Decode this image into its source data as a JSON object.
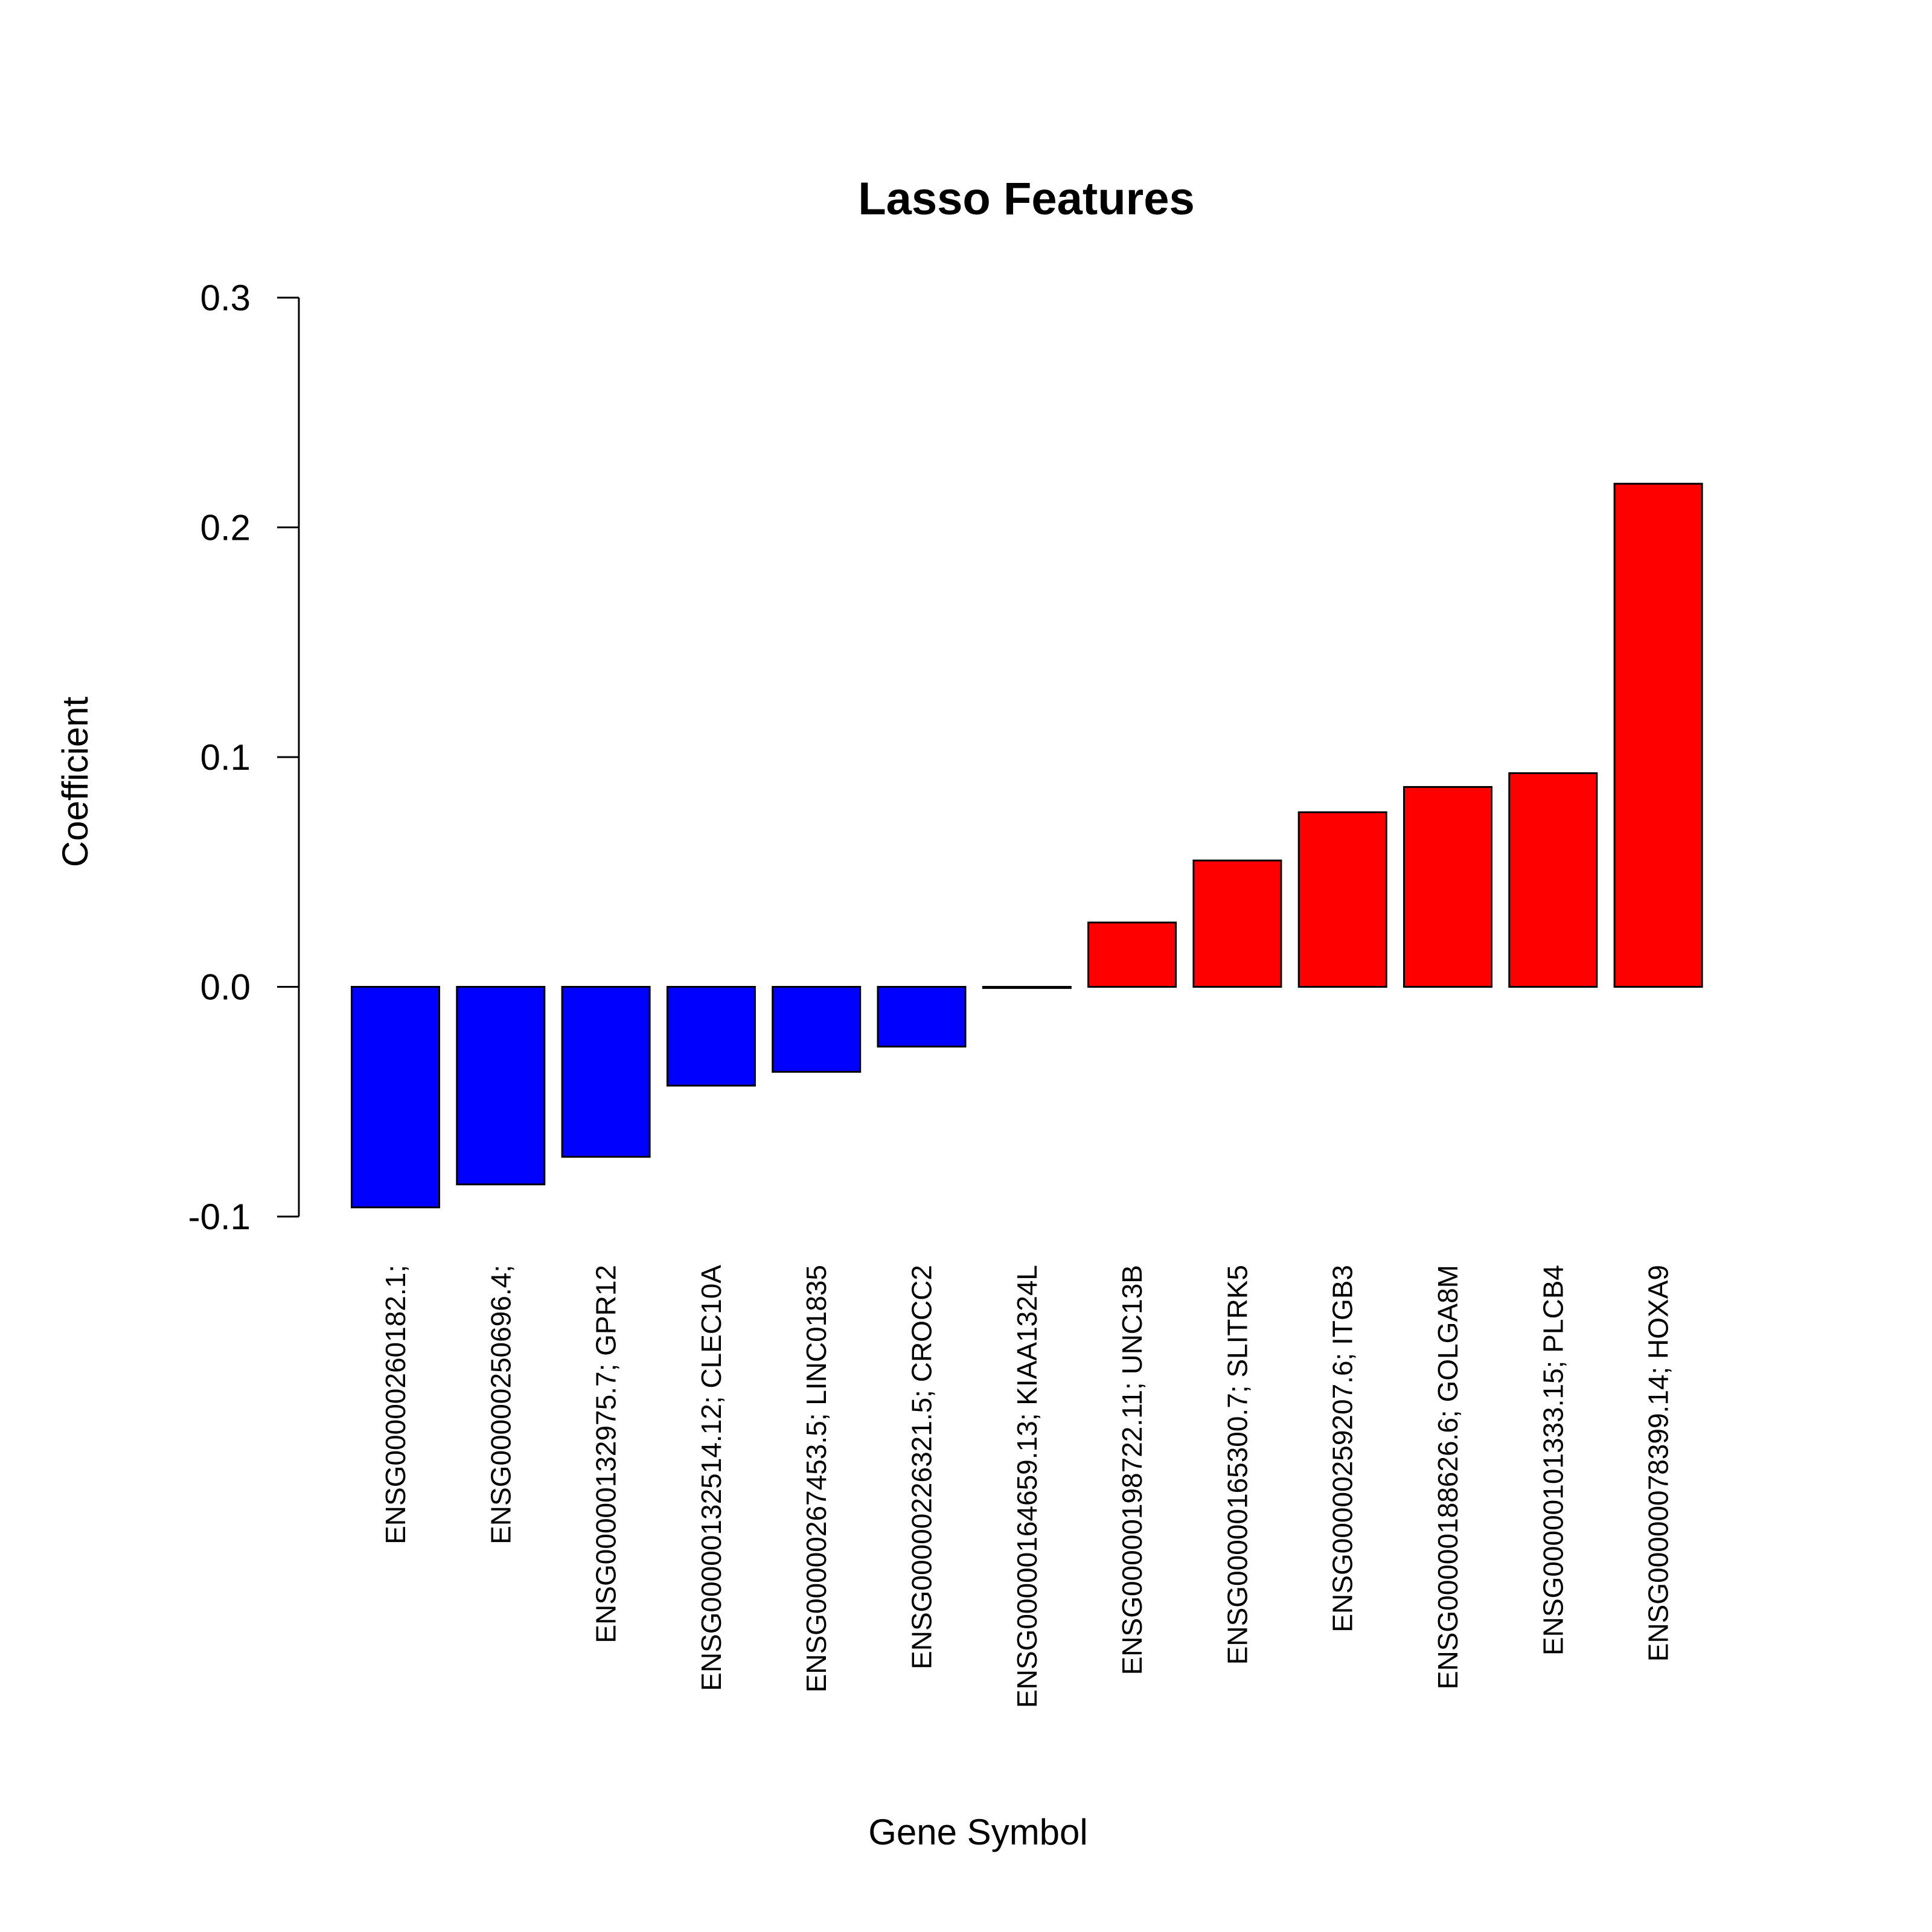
{
  "chart_data": {
    "type": "bar",
    "title": "Lasso Features",
    "xlabel": "Gene Symbol",
    "ylabel": "Coefficient",
    "ylim": [
      -0.1,
      0.3
    ],
    "yticks": [
      "-0.1",
      "0.0",
      "0.1",
      "0.2",
      "0.3"
    ],
    "grid": false,
    "categories": [
      "ENSG00000260182.1;",
      "ENSG00000250696.4;",
      "ENSG00000132975.7; GPR12",
      "ENSG00000132514.12; CLEC10A",
      "ENSG00000267453.5; LINC01835",
      "ENSG00000226321.5; CROCC2",
      "ENSG00000164659.13; KIAA1324L",
      "ENSG00000198722.11; UNC13B",
      "ENSG00000165300.7; SLITRK5",
      "ENSG00000259207.6; ITGB3",
      "ENSG00000188626.6; GOLGA8M",
      "ENSG00000101333.15; PLCB4",
      "ENSG00000078399.14; HOXA9"
    ],
    "values": [
      -0.096,
      -0.086,
      -0.074,
      -0.043,
      -0.037,
      -0.026,
      -0.0005,
      0.028,
      0.055,
      0.076,
      0.087,
      0.093,
      0.219
    ],
    "colors": {
      "negative": "#0000ff",
      "positive": "#ff0000",
      "outline": "#000000"
    }
  }
}
